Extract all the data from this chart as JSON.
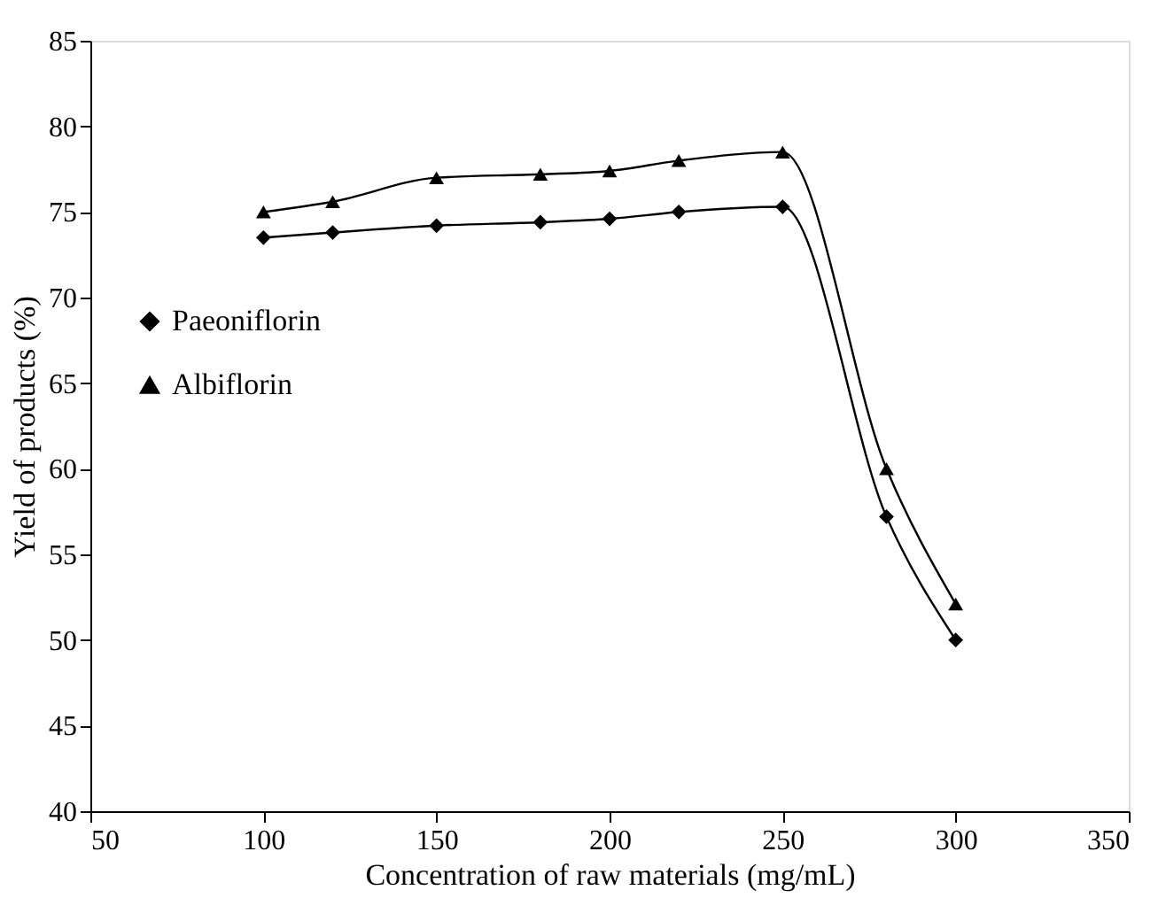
{
  "chart_data": {
    "type": "line",
    "xlabel": "Concentration of raw materials (mg/mL)",
    "ylabel": "Yield of products (%)",
    "x": [
      100,
      120,
      150,
      180,
      200,
      220,
      250,
      280,
      300
    ],
    "series": [
      {
        "name": "Paeoniflorin",
        "color": "#000000",
        "marker": "diamond",
        "values": [
          73.5,
          73.8,
          74.2,
          74.4,
          74.6,
          75.0,
          75.3,
          57.2,
          50.0
        ]
      },
      {
        "name": "Albiflorin",
        "color": "#000000",
        "marker": "triangle",
        "values": [
          75.0,
          75.6,
          77.0,
          77.2,
          77.4,
          78.0,
          78.5,
          60.0,
          52.1
        ]
      }
    ],
    "xlim": [
      50,
      350
    ],
    "xticks": [
      50,
      100,
      150,
      200,
      250,
      300,
      350
    ],
    "ylim": [
      40,
      85
    ],
    "yticks": [
      40,
      45,
      50,
      55,
      60,
      65,
      70,
      75,
      80,
      85
    ],
    "grid": false,
    "legend": "left",
    "line_style": "solid"
  }
}
